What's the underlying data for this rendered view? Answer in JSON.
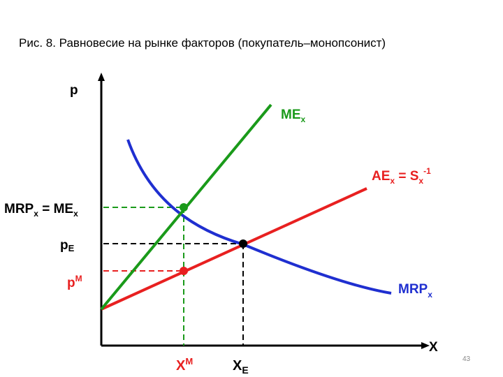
{
  "caption": "Рис. 8. Равновесие на рынке факторов (покупатель–монопсонист)",
  "slide_number": "43",
  "axes": {
    "y_label": "p",
    "x_label": "X"
  },
  "curves": {
    "mex": {
      "label_main": "ME",
      "label_sub": "x",
      "color": "#1a9a1a"
    },
    "supply": {
      "label_main": "AE",
      "label_sub1": "x",
      "label_mid": " = S",
      "label_sub2": "x",
      "label_sup": "-1",
      "color": "#e82020"
    },
    "mrp": {
      "label_main": "MRP",
      "label_sub": "x",
      "color": "#1f2fd0"
    }
  },
  "levels": {
    "mrp_eq_me": {
      "p1": "MRP",
      "s1": "x",
      "p2": " = ME",
      "s2": "x"
    },
    "pe": {
      "main": "p",
      "sub": "E"
    },
    "pm": {
      "main": "p",
      "sup": "M"
    }
  },
  "quantities": {
    "xm": {
      "main": "X",
      "sup": "M"
    },
    "xe": {
      "main": "X",
      "sub": "E"
    }
  },
  "colors": {
    "guide_green": "#1a9a1a",
    "guide_red": "#e82020",
    "guide_black": "#000000"
  }
}
